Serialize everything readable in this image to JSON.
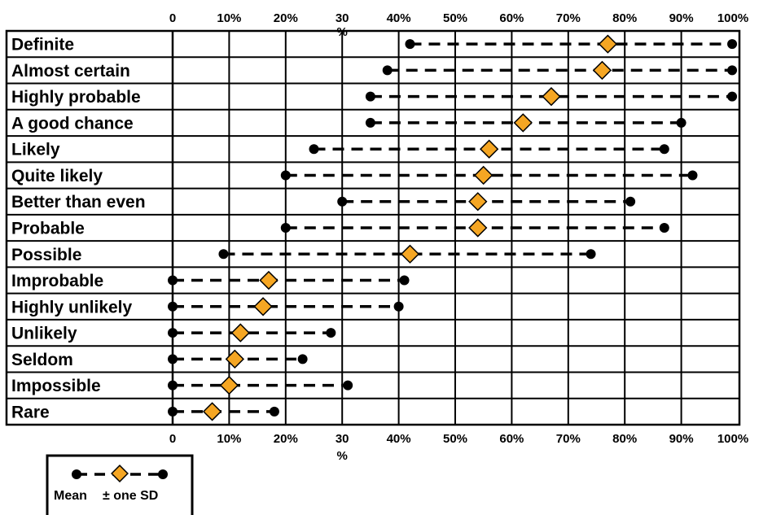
{
  "chart_data": {
    "type": "scatter",
    "categories": [
      "Definite",
      "Almost certain",
      "Highly probable",
      "A good chance",
      "Likely",
      "Quite likely",
      "Better than even",
      "Probable",
      "Possible",
      "Improbable",
      "Highly unlikely",
      "Unlikely",
      "Seldom",
      "Impossible",
      "Rare"
    ],
    "low": [
      42,
      38,
      35,
      35,
      25,
      20,
      30,
      20,
      9,
      0,
      0,
      0,
      0,
      0,
      0
    ],
    "mean": [
      77,
      76,
      67,
      62,
      56,
      55,
      54,
      54,
      42,
      17,
      16,
      12,
      11,
      10,
      7
    ],
    "high": [
      99,
      99,
      99,
      90,
      87,
      92,
      81,
      87,
      74,
      41,
      40,
      28,
      23,
      31,
      18
    ],
    "x_ticks": [
      "0",
      "10%",
      "20%",
      "30",
      "40%",
      "50%",
      "60%",
      "70%",
      "80%",
      "90%",
      "100%"
    ],
    "x_tick_suffix": "%",
    "xlim": [
      0,
      100
    ],
    "grid": true,
    "legend": {
      "mean_label": "Mean",
      "sd_label": "± one SD",
      "placement": "bottom-left"
    },
    "colors": {
      "mean_marker": "#F5A623",
      "marker_edge": "#000000",
      "sd_marker": "#000000",
      "line": "#000000"
    }
  }
}
